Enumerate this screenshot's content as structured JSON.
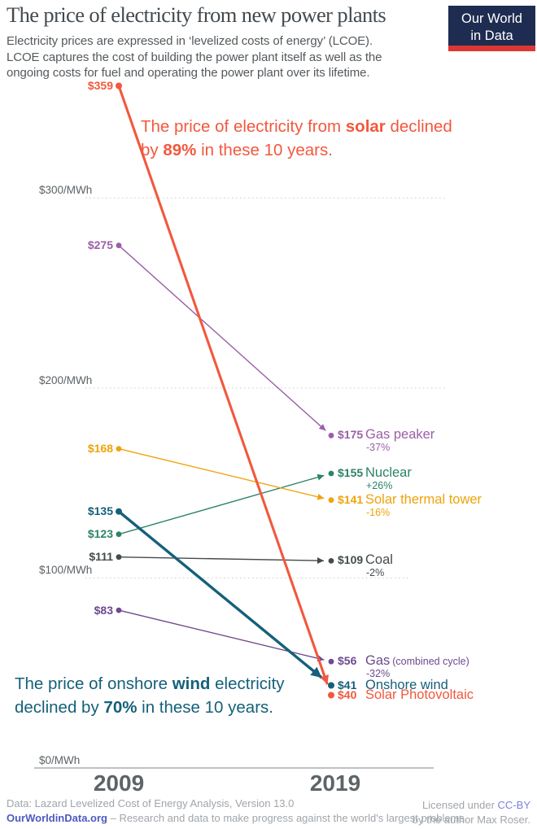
{
  "header": {
    "title": "The price of electricity from new power plants",
    "subtitle_lines": [
      "Electricity prices are expressed in ‘levelized costs of energy’ (LCOE).",
      "LCOE captures the cost of building the power plant itself as well as the",
      "ongoing costs for fuel and operating the power plant over its lifetime."
    ],
    "logo": {
      "line1": "Our World",
      "line2": "in Data",
      "bg_color": "#1D2C50",
      "bar_color": "#DC3732"
    }
  },
  "annotations": {
    "solar": {
      "t1": "The price of electricity from ",
      "b1": "solar",
      "t2": " declined by ",
      "b2": "89%",
      "t3": " in these 10 years.",
      "color": "#F2583E"
    },
    "wind": {
      "t1": "The price of onshore ",
      "b1": "wind",
      "t2": " electricity declined by ",
      "b2": "70%",
      "t3": " in these 10 years.",
      "color": "#15607A"
    }
  },
  "chart_data": {
    "type": "line",
    "x": [
      2009,
      2019
    ],
    "x_labels": [
      "2009",
      "2019"
    ],
    "ylabel": "$/MWh",
    "ylim": [
      0,
      380
    ],
    "grid": "dotted-horizontal",
    "y_axis": {
      "ticks": [
        {
          "value": 300,
          "label": "$300/MWh"
        },
        {
          "value": 200,
          "label": "$200/MWh"
        },
        {
          "value": 100,
          "label": "$100/MWh"
        },
        {
          "value": 0,
          "label": "$0/MWh"
        }
      ]
    },
    "series": [
      {
        "id": "gas-peaker",
        "name": "Gas peaker",
        "values": [
          275,
          175
        ],
        "start_label": "$275",
        "end_label": "$175",
        "pct": "-37%",
        "color": "#9B5FA7"
      },
      {
        "id": "nuclear",
        "name": "Nuclear",
        "values": [
          123,
          155
        ],
        "start_label": "$123",
        "end_label": "$155",
        "pct": "+26%",
        "color": "#2C8465"
      },
      {
        "id": "solar-thermal",
        "name": "Solar thermal tower",
        "values": [
          168,
          141
        ],
        "start_label": "$168",
        "end_label": "$141",
        "pct": "-16%",
        "color": "#F0A30A"
      },
      {
        "id": "coal",
        "name": "Coal",
        "values": [
          111,
          109
        ],
        "start_label": "$111",
        "end_label": "$109",
        "pct": "-2%",
        "color": "#434B4D"
      },
      {
        "id": "gas-cc",
        "name": "Gas",
        "name_suffix": "(combined cycle)",
        "values": [
          83,
          56
        ],
        "start_label": "$83",
        "end_label": "$56",
        "pct": "-32%",
        "color": "#6E4A8E"
      },
      {
        "id": "onshore-wind",
        "name": "Onshore wind",
        "values": [
          135,
          41
        ],
        "start_label": "$135",
        "end_label": "$41",
        "pct": "",
        "color": "#15607A"
      },
      {
        "id": "solar-pv",
        "name": "Solar Photovoltaic",
        "values": [
          359,
          40
        ],
        "start_label": "$359",
        "end_label": "$40",
        "pct": "",
        "color": "#F2583E"
      }
    ]
  },
  "footer": {
    "line1": "Data: Lazard Levelized Cost of Energy Analysis, Version 13.0",
    "line2_link": "OurWorldinData.org",
    "line2_rest": " – Research and data to make progress against the world's largest problems.",
    "right1_pre": "Licensed under ",
    "right1_link": "CC-BY",
    "right2": "by the author Max Roser."
  }
}
